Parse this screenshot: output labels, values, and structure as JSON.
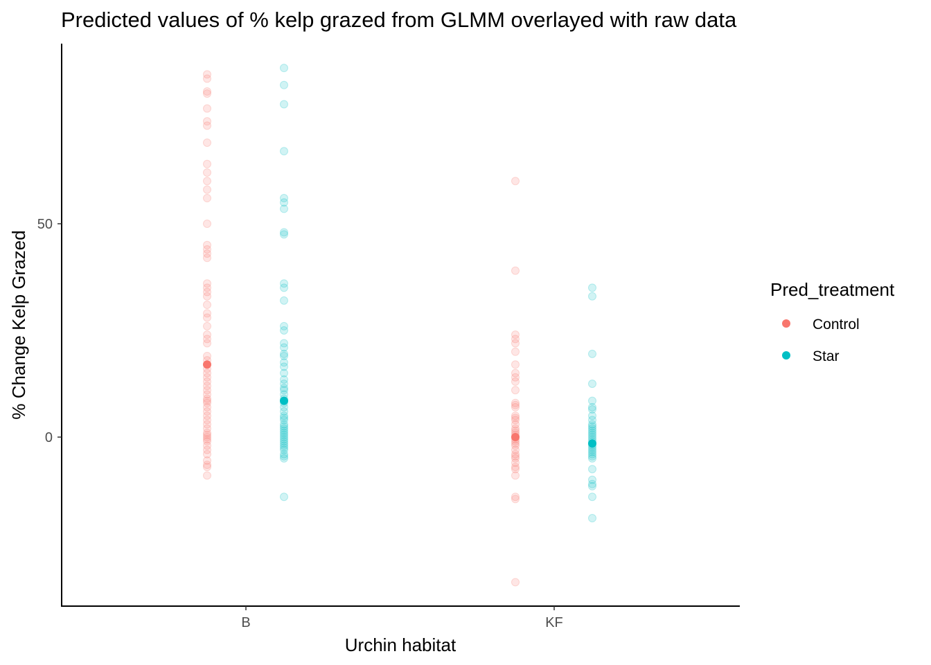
{
  "chart_data": {
    "type": "scatter",
    "title": "Predicted values of % kelp grazed from GLMM overlayed with raw data",
    "xlabel": "Urchin habitat",
    "ylabel": "% Change Kelp Grazed",
    "categories": [
      "B",
      "KF"
    ],
    "y_ticks": [
      0,
      50
    ],
    "ylim": [
      -39.5,
      92
    ],
    "grid": false,
    "legend": {
      "title": "Pred_treatment",
      "placement": "right",
      "entries": [
        {
          "label": "Control",
          "color": "#F8766D"
        },
        {
          "label": "Star",
          "color": "#00BFC4"
        }
      ]
    },
    "series": [
      {
        "name": "Control",
        "color": "#F8766D",
        "predicted": {
          "B": 17,
          "KF": 0
        },
        "raw": {
          "B": [
            85,
            84,
            81,
            80.5,
            77,
            74,
            73,
            69,
            64,
            62,
            60,
            58,
            56,
            50,
            45,
            44,
            43,
            42,
            36,
            35,
            34,
            33,
            31,
            29,
            28,
            26,
            24,
            23,
            22,
            19,
            18,
            17,
            16,
            15,
            14,
            13,
            12,
            11,
            10,
            9,
            8.5,
            8,
            7,
            6,
            5,
            4,
            3,
            2,
            1,
            0.5,
            0,
            -0.5,
            -1,
            -2,
            -3,
            -4,
            -5.5,
            -6.5,
            -7,
            -9
          ],
          "KF": [
            60,
            39,
            24,
            23,
            22,
            20,
            17,
            15,
            14,
            13,
            11,
            8,
            7.5,
            7,
            5,
            4.5,
            4,
            3,
            2,
            1.5,
            1,
            0.5,
            0,
            -0.5,
            -1,
            -1.5,
            -2,
            -3,
            -4,
            -4.5,
            -5,
            -6,
            -7,
            -7.5,
            -9,
            -14,
            -14.5,
            -34
          ]
        }
      },
      {
        "name": "Star",
        "color": "#00BFC4",
        "predicted": {
          "B": 8.5,
          "KF": -1.5
        },
        "raw": {
          "B": [
            86.5,
            82.5,
            78,
            67,
            56,
            55,
            53.5,
            48,
            47.5,
            36,
            35,
            32,
            26,
            25,
            22,
            21,
            19.5,
            19,
            17.5,
            16.5,
            15,
            13.5,
            12.5,
            11.5,
            11,
            10,
            9,
            8,
            7,
            6,
            5,
            4.5,
            4,
            3,
            2.5,
            2,
            1.5,
            1,
            0.5,
            0,
            -0.5,
            -1,
            -1.5,
            -2,
            -2.5,
            -3,
            -4,
            -4.5,
            -5,
            -14
          ],
          "KF": [
            35,
            33,
            19.5,
            12.5,
            8.5,
            7,
            6.5,
            5,
            4,
            3,
            2.5,
            2,
            1.5,
            1,
            0.5,
            0,
            -0.5,
            -1,
            -1.5,
            -2,
            -2.5,
            -3,
            -3.5,
            -4,
            -4.5,
            -5,
            -7.5,
            -10,
            -11,
            -11.5,
            -14,
            -19
          ]
        }
      }
    ]
  }
}
